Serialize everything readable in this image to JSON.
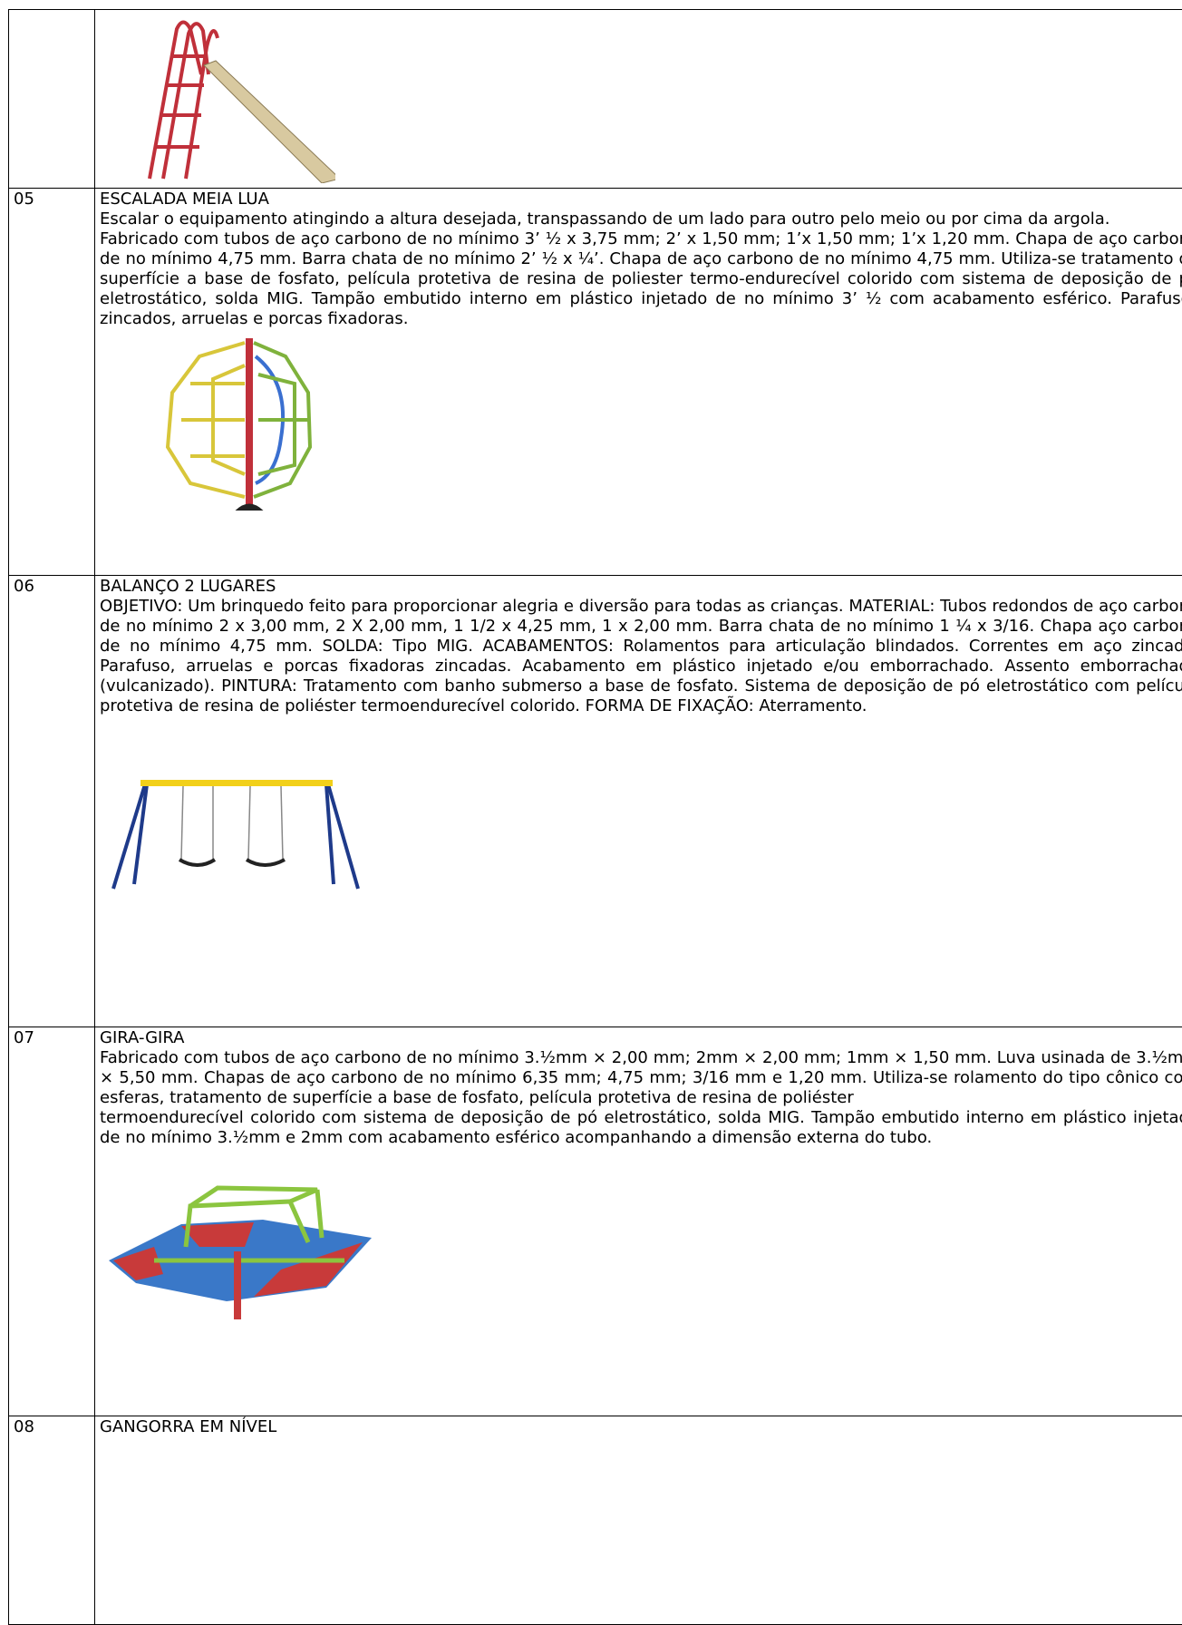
{
  "table": {
    "rows": [
      {},
      {
        "number": "05",
        "title": "ESCALADA MEIA LUA",
        "paragraphs": [
          "Escalar o equipamento atingindo a altura desejada, transpassando de um lado para outro pelo meio ou por cima da argola.",
          "Fabricado com tubos de aço carbono de no mínimo 3’ ½ x 3,75 mm; 2’ x 1,50 mm; 1’x 1,50 mm; 1’x 1,20 mm. Chapa de aço carbono de no mínimo 4,75 mm. Barra chata de no mínimo 2’ ½ x ¼’. Chapa de aço carbono de no mínimo 4,75 mm. Utiliza-se tratamento de superfície a base de fosfato, película protetiva de resina de poliester termo-endurecível colorido com sistema de deposição de pó eletrostático, solda MIG. Tampão embutido interno em plástico injetado de no mínimo 3’ ½ com acabamento esférico. Parafusos zincados, arruelas e porcas fixadoras."
        ]
      },
      {
        "number": "06",
        "title": "BALANÇO 2 LUGARES",
        "paragraphs": [
          "OBJETIVO: Um brinquedo feito para proporcionar alegria e diversão para todas as crianças. MATERIAL: Tubos redondos de aço carbono de no mínimo 2 x 3,00 mm, 2 X 2,00 mm, 1 1/2 x 4,25 mm, 1 x 2,00 mm. Barra chata de no mínimo 1 ¼ x 3/16. Chapa aço carbono de no mínimo 4,75 mm. SOLDA: Tipo MIG. ACABAMENTOS: Rolamentos para articulação blindados. Correntes em aço zincado. Parafuso, arruelas e porcas fixadoras zincadas. Acabamento em plástico injetado e/ou emborrachado. Assento emborrachado (vulcanizado). PINTURA: Tratamento com banho submerso a base de fosfato. Sistema de deposição de pó eletrostático com película protetiva de resina de poliéster termoendurecível colorido. FORMA DE FIXAÇÃO: Aterramento."
        ]
      },
      {
        "number": "07",
        "title": "GIRA-GIRA",
        "paragraphs": [
          "Fabricado com tubos de aço carbono de no mínimo 3.½mm × 2,00 mm; 2mm × 2,00 mm; 1mm × 1,50 mm. Luva usinada de 3.½mm × 5,50 mm. Chapas de aço carbono de no mínimo 6,35 mm; 4,75 mm; 3/16 mm e 1,20 mm. Utiliza-se rolamento do tipo cônico com esferas, tratamento de superfície a base de fosfato, película protetiva de resina de poliéster",
          "termoendurecível colorido com sistema de deposição de pó eletrostático, solda MIG. Tampão embutido interno em plástico injetado de no mínimo 3.½mm e 2mm com acabamento esférico acompanhando a dimensão externa do tubo."
        ]
      },
      {
        "number": "08",
        "title": "GANGORRA EM NÍVEL"
      }
    ]
  }
}
